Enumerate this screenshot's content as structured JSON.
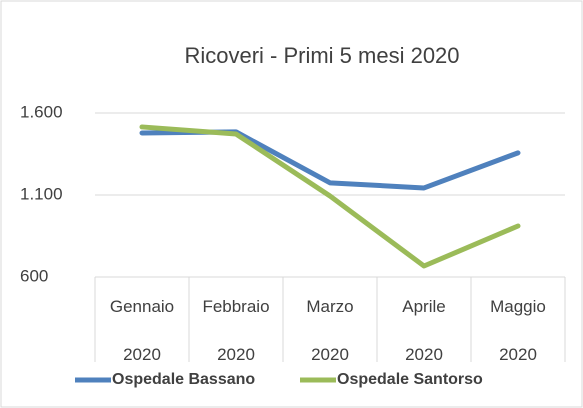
{
  "chart_data": {
    "type": "line",
    "title": "Ricoveri - Primi 5 mesi 2020",
    "categories": [
      "Gennaio\n2020",
      "Febbraio\n2020",
      "Marzo\n2020",
      "Aprile\n2020",
      "Maggio\n2020"
    ],
    "series": [
      {
        "name": "Ospedale Bassano",
        "color": "#4f81bd",
        "values": [
          1478,
          1485,
          1174,
          1143,
          1357
        ]
      },
      {
        "name": "Ospedale Santorso",
        "color": "#9bbb59",
        "values": [
          1515,
          1472,
          1094,
          667,
          911
        ]
      }
    ],
    "ylim": [
      600,
      1600
    ],
    "yticks": [
      600,
      {
        "value": 1100,
        "label": "1.100"
      },
      {
        "value": 1600,
        "label": "1.600"
      }
    ],
    "grid": true
  }
}
